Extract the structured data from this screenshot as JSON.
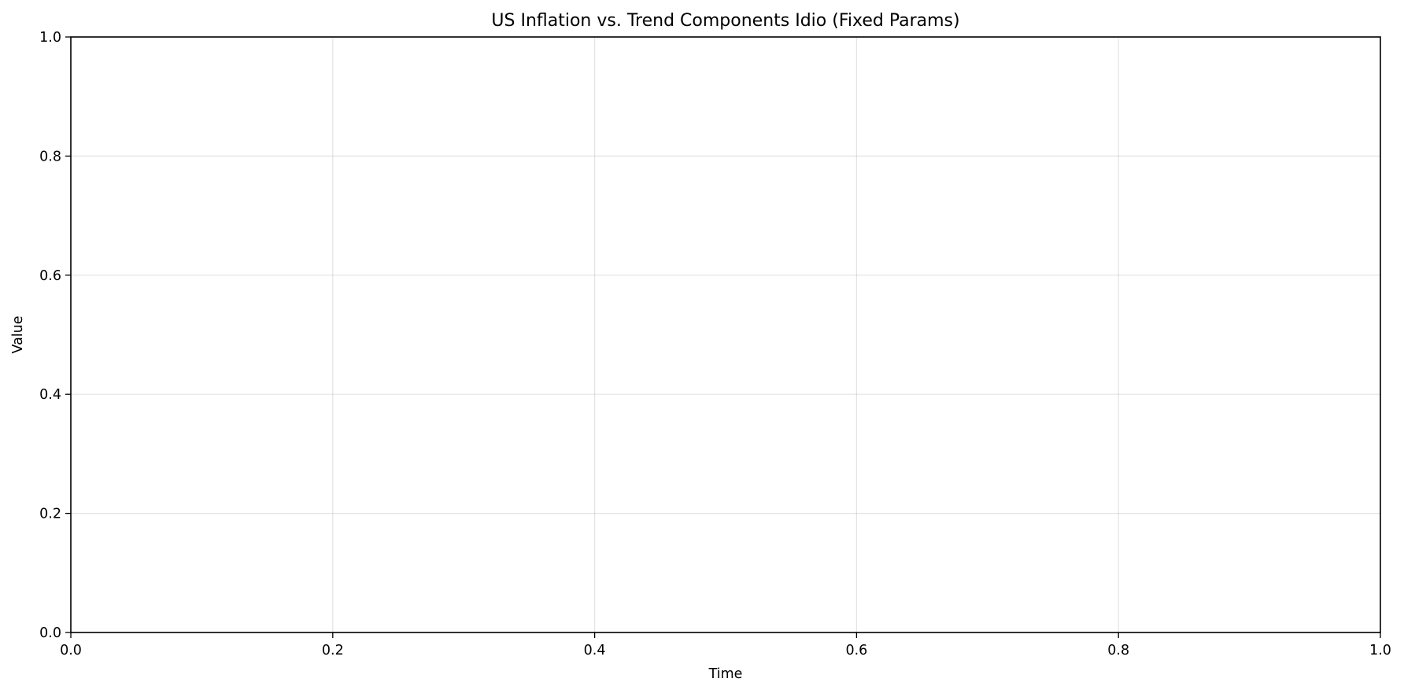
{
  "chart_data": {
    "type": "line",
    "title": "US Inflation vs. Trend Components Idio (Fixed Params)",
    "xlabel": "Time",
    "ylabel": "Value",
    "xlim": [
      0,
      1
    ],
    "ylim": [
      0,
      1
    ],
    "x_ticks": [
      "0.0",
      "0.2",
      "0.4",
      "0.6",
      "0.8",
      "1.0"
    ],
    "y_ticks": [
      "0.0",
      "0.2",
      "0.4",
      "0.6",
      "0.8",
      "1.0"
    ],
    "grid": true,
    "series": []
  }
}
